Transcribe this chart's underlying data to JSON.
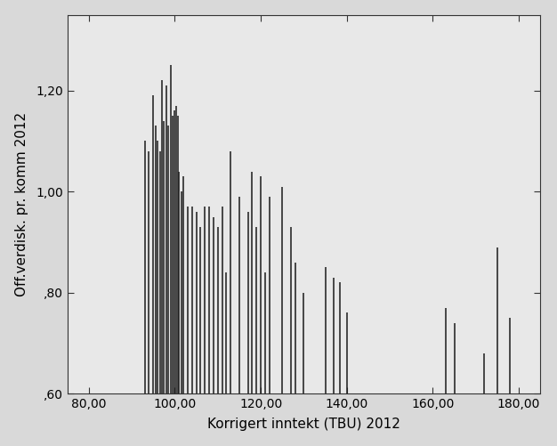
{
  "x_values": [
    93,
    94,
    95,
    95.5,
    96,
    96.5,
    97,
    97.5,
    98,
    98.5,
    99,
    99.5,
    100,
    100.3,
    100.7,
    101,
    101.5,
    102,
    103,
    104,
    105,
    106,
    107,
    108,
    109,
    110,
    111,
    112,
    113,
    115,
    117,
    118,
    119,
    120,
    121,
    122,
    125,
    127,
    128,
    130,
    135,
    137,
    138.5,
    140,
    163,
    165,
    172,
    175,
    178
  ],
  "y_values": [
    1.1,
    1.08,
    1.19,
    1.13,
    1.1,
    1.08,
    1.22,
    1.14,
    1.21,
    1.13,
    1.25,
    1.15,
    1.16,
    1.17,
    1.15,
    1.04,
    1.0,
    1.03,
    0.97,
    0.97,
    0.96,
    0.93,
    0.97,
    0.97,
    0.95,
    0.93,
    0.97,
    0.84,
    1.08,
    0.99,
    0.96,
    1.04,
    0.93,
    1.03,
    0.84,
    0.99,
    1.01,
    0.93,
    0.86,
    0.8,
    0.85,
    0.83,
    0.82,
    0.76,
    0.77,
    0.74,
    0.68,
    0.89,
    0.75
  ],
  "xlabel": "Korrigert inntekt (TBU) 2012",
  "ylabel": "Off.verdisk. pr. komm 2012",
  "xlim": [
    75,
    185
  ],
  "ylim": [
    0.6,
    1.35
  ],
  "xticks": [
    80.0,
    100.0,
    120.0,
    140.0,
    160.0,
    180.0
  ],
  "yticks": [
    0.6,
    0.8,
    1.0,
    1.2
  ],
  "fig_facecolor": "#d9d9d9",
  "plot_facecolor": "#e8e8e8",
  "line_color": "#1a1a1a",
  "line_width": 1.1,
  "xlabel_fontsize": 11,
  "ylabel_fontsize": 11,
  "tick_labelsize": 10
}
